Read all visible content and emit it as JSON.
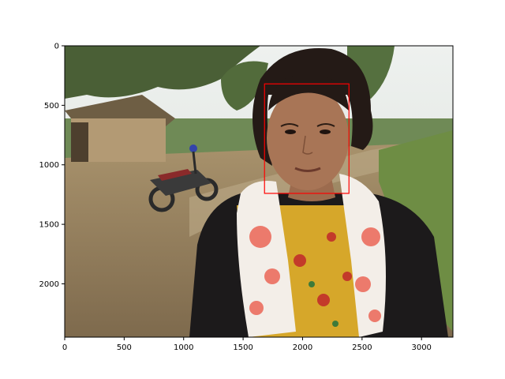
{
  "chart_data": {
    "type": "image",
    "title": "",
    "xlabel": "",
    "ylabel": "",
    "xlim": [
      0,
      3264
    ],
    "ylim": [
      2448,
      0
    ],
    "x_ticks": [
      0,
      500,
      1000,
      1500,
      2000,
      2500,
      3000
    ],
    "y_ticks": [
      0,
      500,
      1000,
      1500,
      2000
    ],
    "annotations": [
      {
        "type": "rectangle",
        "label": "face",
        "x": [
          1680,
          2390
        ],
        "y": [
          320,
          1240
        ],
        "color": "#ff0000"
      }
    ],
    "image_description": "Outdoor photo: a woman in a floral scarf standing on a rural dirt road, thatched mud hut and motorcycle at left, trees behind."
  },
  "colors": {
    "sky": "#e8ecea",
    "ground": "#9a8463",
    "foliage": "#4f6a3a",
    "box": "#ff0000"
  }
}
